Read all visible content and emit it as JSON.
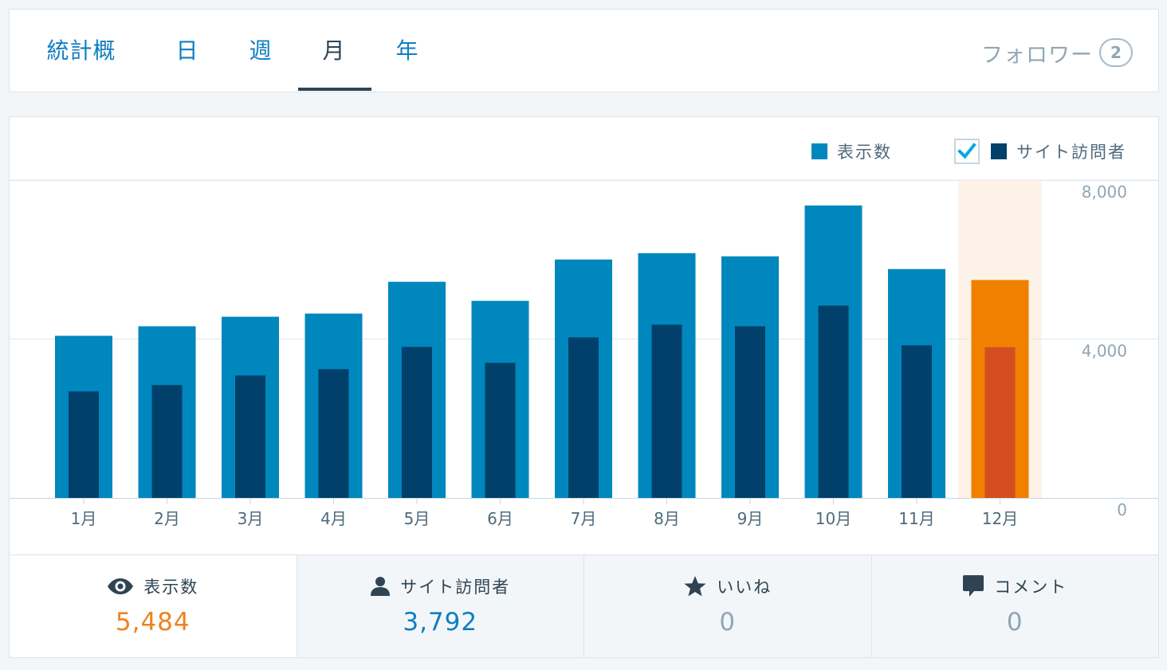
{
  "tabs": [
    {
      "label": "統計概要",
      "active": false
    },
    {
      "label": "日",
      "active": false
    },
    {
      "label": "週",
      "active": false
    },
    {
      "label": "月",
      "active": true
    },
    {
      "label": "年",
      "active": false
    }
  ],
  "followers": {
    "label": "フォロワー",
    "count": "2"
  },
  "legend": {
    "views_label": "表示数",
    "visitors_label": "サイト訪問者",
    "visitors_checked": true
  },
  "colors": {
    "views": "#0087be",
    "visitors": "#00406a",
    "selected_views": "#f08000",
    "selected_visitors": "#d54e21",
    "selected_highlight": "#fcf2e7",
    "axis_text": "#8fa6b6"
  },
  "chart_data": {
    "type": "bar",
    "categories": [
      "1月",
      "2月",
      "3月",
      "4月",
      "5月",
      "6月",
      "7月",
      "8月",
      "9月",
      "10月",
      "11月",
      "12月"
    ],
    "series": [
      {
        "name": "表示数",
        "values": [
          4080,
          4320,
          4560,
          4640,
          5440,
          4960,
          6000,
          6160,
          6080,
          7360,
          5760,
          5484
        ]
      },
      {
        "name": "サイト訪問者",
        "values": [
          2680,
          2840,
          3080,
          3240,
          3800,
          3400,
          4040,
          4360,
          4320,
          4840,
          3840,
          3792
        ]
      }
    ],
    "ylim": [
      0,
      8000
    ],
    "yticks": [
      "0",
      "4,000",
      "8,000"
    ],
    "selected_index": 11,
    "legend_position": "top-right",
    "grid": true
  },
  "stats": [
    {
      "icon": "eye-icon",
      "label": "表示数",
      "value": "5,484",
      "value_color": "#f0821e",
      "selected": true
    },
    {
      "icon": "person-icon",
      "label": "サイト訪問者",
      "value": "3,792",
      "value_color": "#0f7ec2",
      "selected": false
    },
    {
      "icon": "star-icon",
      "label": "いいね",
      "value": "0",
      "value_color": "#8fa6b6",
      "selected": false
    },
    {
      "icon": "comment-icon",
      "label": "コメント",
      "value": "0",
      "value_color": "#8fa6b6",
      "selected": false
    }
  ]
}
